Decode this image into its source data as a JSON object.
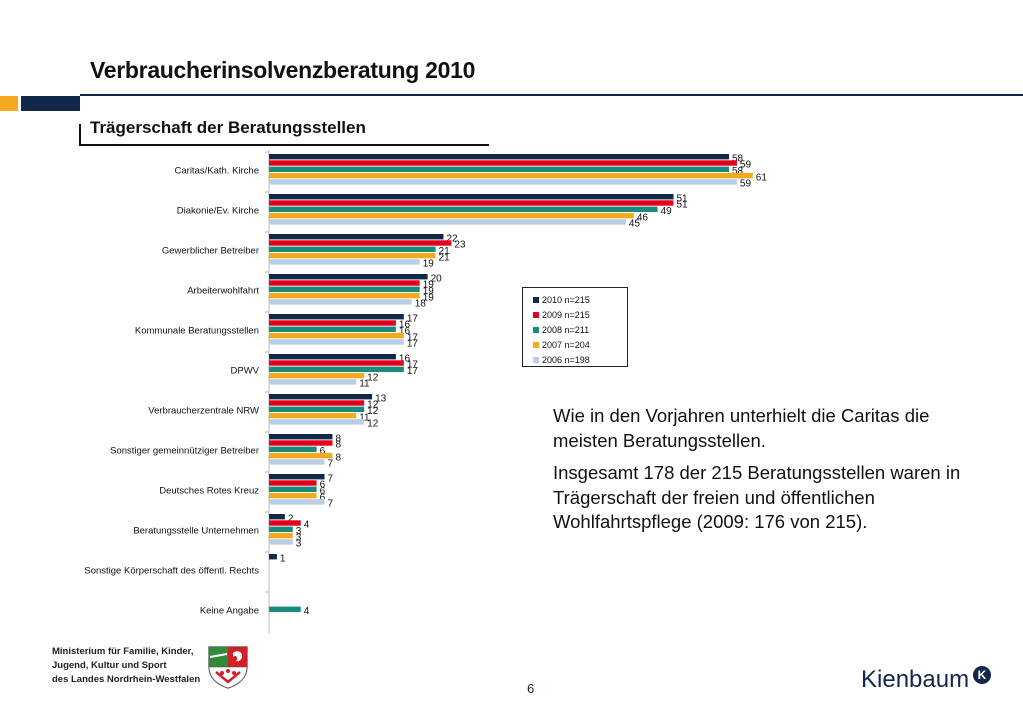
{
  "title": "Verbraucherinsolvenzberatung 2010",
  "subtitle": "Trägerschaft der Beratungsstellen",
  "commentary": [
    "Wie in den Vorjahren unterhielt die Caritas die meisten Beratungsstellen.",
    "Insgesamt 178 der 215 Beratungsstellen waren in Trägerschaft der freien und öffentlichen Wohlfahrtspflege (2009: 176 von 215)."
  ],
  "footer": {
    "ministry_lines": [
      "Ministerium für Familie, Kinder,",
      "Jugend, Kultur und Sport",
      "des Landes Nordrhein-Westfalen"
    ],
    "page_number": "6",
    "logo_text": "Kienbaum",
    "logo_badge": "K"
  },
  "colors": {
    "accent_navy": "#12284b",
    "accent_orange": "#f5a91c"
  },
  "chart_data": {
    "type": "bar",
    "orientation": "horizontal",
    "categories": [
      "Caritas/Kath. Kirche",
      "Diakonie/Ev. Kirche",
      "Gewerblicher Betreiber",
      "Arbeiterwohlfahrt",
      "Kommunale Beratungsstellen",
      "DPWV",
      "Verbraucherzentrale NRW",
      "Sonstiger gemeinnütziger Betreiber",
      "Deutsches Rotes Kreuz",
      "Beratungsstelle Unternehmen",
      "Sonstige Körperschaft des öffentl. Rechts",
      "Keine Angabe"
    ],
    "series": [
      {
        "name": "2010 n=215",
        "color": "#12284b",
        "values": [
          58,
          51,
          22,
          20,
          17,
          16,
          13,
          8,
          7,
          2,
          1,
          null
        ]
      },
      {
        "name": "2009 n=215",
        "color": "#e2001a",
        "values": [
          59,
          51,
          23,
          19,
          16,
          17,
          12,
          8,
          6,
          4,
          null,
          null
        ]
      },
      {
        "name": "2008 n=211",
        "color": "#1a8a7f",
        "values": [
          58,
          49,
          21,
          19,
          16,
          17,
          12,
          6,
          6,
          3,
          null,
          4
        ]
      },
      {
        "name": "2007 n=204",
        "color": "#f5a91c",
        "values": [
          61,
          46,
          21,
          19,
          17,
          12,
          11,
          8,
          6,
          3,
          null,
          null
        ]
      },
      {
        "name": "2006 n=198",
        "color": "#bccde6",
        "values": [
          59,
          45,
          19,
          18,
          17,
          11,
          12,
          7,
          7,
          3,
          null,
          null
        ]
      }
    ],
    "xlim": [
      0,
      65
    ],
    "legend_position": "right"
  }
}
